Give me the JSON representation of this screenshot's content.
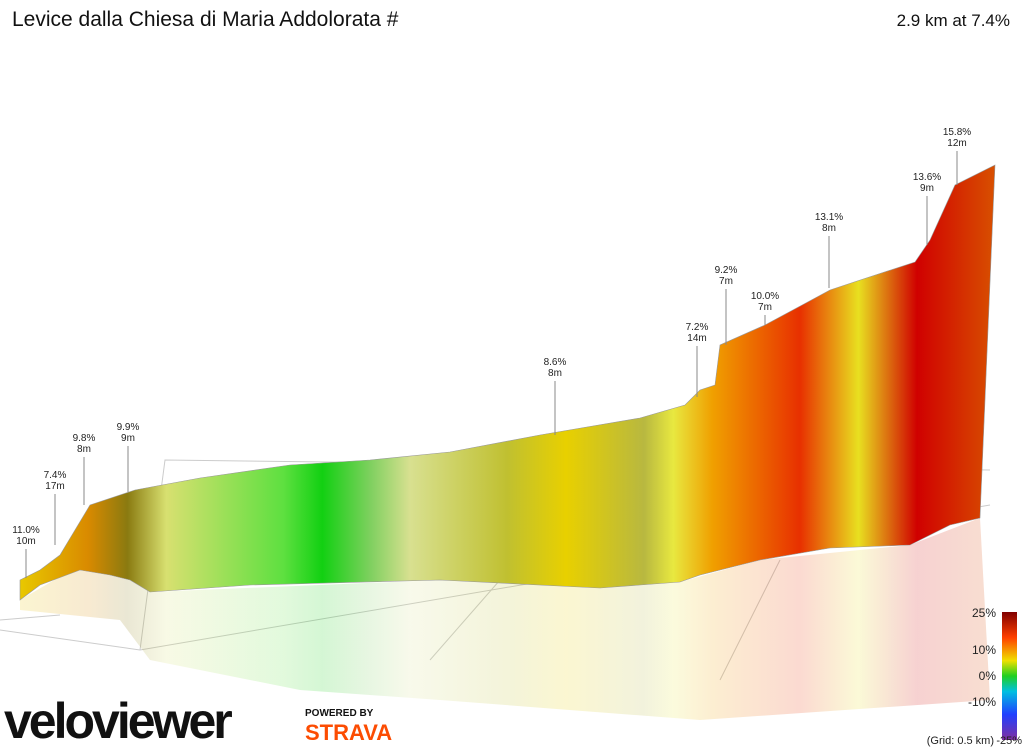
{
  "header": {
    "title": "Levice dalla Chiesa di Maria Addolorata #",
    "summary": "2.9 km at 7.4%"
  },
  "annotations": [
    {
      "grade": "11.0%",
      "length": "10m"
    },
    {
      "grade": "7.4%",
      "length": "17m"
    },
    {
      "grade": "9.8%",
      "length": "8m"
    },
    {
      "grade": "9.9%",
      "length": "9m"
    },
    {
      "grade": "8.6%",
      "length": "8m"
    },
    {
      "grade": "7.2%",
      "length": "14m"
    },
    {
      "grade": "9.2%",
      "length": "7m"
    },
    {
      "grade": "10.0%",
      "length": "7m"
    },
    {
      "grade": "13.1%",
      "length": "8m"
    },
    {
      "grade": "13.6%",
      "length": "9m"
    },
    {
      "grade": "15.8%",
      "length": "12m"
    }
  ],
  "legend": {
    "labels": [
      "25%",
      "10%",
      "0%",
      "-10%",
      "-25%"
    ],
    "grid_note": "(Grid: 0.5 km)"
  },
  "branding": {
    "logo": "veloviewer",
    "powered": "POWERED BY",
    "strava": "STRAVA"
  }
}
